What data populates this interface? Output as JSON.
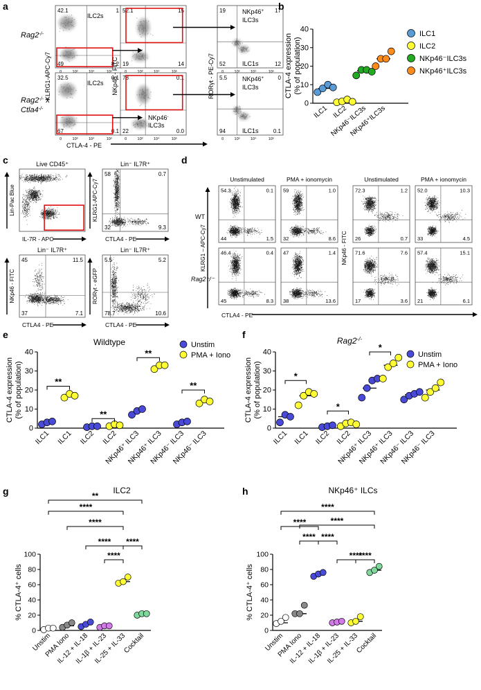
{
  "panel_a": {
    "letter": "a",
    "rows": [
      {
        "label_main": "Rag2",
        "label_sup": "-/-",
        "label_line2": ""
      },
      {
        "label_main": "Rag2",
        "label_sup": "-/-",
        "label_line2": "Ctla4",
        "label_line2_sup": "-/-",
        "label_x": " x"
      }
    ],
    "row1": {
      "plot1": {
        "q_tl": "42.1",
        "gate_label": "ILC2s",
        "q_tr": "1",
        "q_bl": "49",
        "q_br": "8.2"
      },
      "plot2": {
        "q_tl": "52.1",
        "q_tr": "15",
        "q_bl": "19",
        "q_br": "14"
      },
      "plot3": {
        "q_tl": "19",
        "q_tr": "17",
        "gate_label_1": "NKp46",
        "gate_label_2": "ILC3s",
        "q_bl": "52",
        "q_br": "12",
        "gate_label_bottom": "ILC1s"
      }
    },
    "row2": {
      "plot1": {
        "q_tl": "32.5",
        "gate_label": "ILC2s",
        "q_tr": "0.1",
        "q_bl": "67",
        "q_br": "0.1"
      },
      "plot2": {
        "q_tl": "78",
        "q_tr": "0.1",
        "q_bl": "22",
        "q_br": "0.0",
        "gate_label_1": "NKp46",
        "gate_label_2": "ILC3s"
      },
      "plot3": {
        "q_tl": "5.5",
        "q_tr": "0",
        "gate_label_1": "NKp46",
        "gate_label_2": "ILC3s",
        "q_bl": "94",
        "q_br": "0.1",
        "gate_label_bottom": "ILC1s"
      }
    },
    "y_labels": [
      "KLRG1-APC-Cy7",
      "NKp46 - FITC",
      "RORγt - PE-Cy7"
    ],
    "x_label": "CTLA-4 - PE",
    "tick_labels": [
      "0",
      "10³",
      "10⁴",
      "10⁵"
    ]
  },
  "panel_b": {
    "letter": "b",
    "chart_data": {
      "type": "scatter",
      "categories": [
        "ILC1",
        "ILC2",
        "NKp46⁻ILC3s",
        "NKp46⁺ILC3s"
      ],
      "ylabel_1": "CTLA-4 expression",
      "ylabel_2": "(% of population)",
      "ylim": [
        0,
        40
      ],
      "yticks": [
        0,
        10,
        20,
        30,
        40
      ],
      "series": [
        {
          "name": "ILC1",
          "color": "#5b9bd5",
          "values": [
            6,
            8,
            10,
            8.5
          ],
          "mean": 8
        },
        {
          "name": "ILC2",
          "color": "#ffff33",
          "values": [
            0.5,
            1,
            2,
            0.8
          ],
          "mean": 1
        },
        {
          "name": "NKp46⁻ILC3s",
          "color": "#22aa22",
          "values": [
            15,
            18,
            18,
            17
          ],
          "mean": 17.5
        },
        {
          "name": "NKp46⁺ILC3s",
          "color": "#ff8c1a",
          "values": [
            20,
            24,
            24,
            28
          ],
          "mean": 24
        }
      ]
    }
  },
  "panel_c": {
    "letter": "c",
    "plots": [
      {
        "title": "Live CD45⁺",
        "ylabel": "Lin-Pac Blue",
        "xlabel": "IL-7R - APC"
      },
      {
        "title": "Lin⁻ IL7R⁺",
        "ylabel": "KLRG1-APC-Cy7",
        "xlabel": "CTLA4 - PE",
        "q_tl": "58",
        "q_tr": "0.7",
        "q_bl": "32",
        "q_br": "9.3"
      },
      {
        "title": "Lin⁻ IL7R⁺",
        "ylabel": "NKp46 - FITC",
        "xlabel": "CTLA4 - PE",
        "q_tl": "45",
        "q_tr": "11.5",
        "q_bl": "37",
        "q_br": "7.1"
      },
      {
        "title": "Lin⁻ IL7R⁺",
        "ylabel": "RORγt - eGFP",
        "xlabel": "CTLA4 - PE",
        "q_tl": "5.5",
        "q_tr": "5.2",
        "q_bl": "78.7",
        "q_br": "10.6"
      }
    ]
  },
  "panel_d": {
    "letter": "d",
    "col_titles": [
      "Unstimulated",
      "PMA + ionomycin",
      "Unstimulated",
      "PMA + ionomycin"
    ],
    "row_labels": [
      "WT",
      "Rag2⁻/⁻"
    ],
    "ylabel_left": "KLRG1 – APC-Cy7",
    "ylabel_right": "NKp46 - FITC",
    "xlabel": "CTLA4 - PE",
    "plots": [
      {
        "q_tl": "54.3",
        "q_tr": "0.1",
        "q_bl": "44",
        "q_br": "1.5"
      },
      {
        "q_tl": "59",
        "q_tr": "1.0",
        "q_bl": "32",
        "q_br": "8.6"
      },
      {
        "q_tl": "72.3",
        "q_tr": "1.2",
        "q_bl": "26",
        "q_br": "0.7"
      },
      {
        "q_tl": "52.0",
        "q_tr": "10.3",
        "q_bl": "33",
        "q_br": "4.5"
      },
      {
        "q_tl": "46.4",
        "q_tr": "0.4",
        "q_bl": "45",
        "q_br": "8.3"
      },
      {
        "q_tl": "47",
        "q_tr": "1.4",
        "q_bl": "38",
        "q_br": "13.6"
      },
      {
        "q_tl": "71.6",
        "q_tr": "7.6",
        "q_bl": "17",
        "q_br": "3.6"
      },
      {
        "q_tl": "57.4",
        "q_tr": "15.1",
        "q_bl": "21",
        "q_br": "6.1"
      }
    ]
  },
  "panel_e": {
    "letter": "e",
    "chart_data": {
      "type": "scatter",
      "title": "Wildtype",
      "ylabel_1": "CTLA-4 expression",
      "ylabel_2": "(% of population)",
      "ylim": [
        0,
        40
      ],
      "yticks": [
        0,
        10,
        20,
        30,
        40
      ],
      "categories": [
        "ILC1",
        "ILC1",
        "ILC2",
        "ILC2",
        "NKp46⁺ ILC3",
        "NKp46⁺ ILC3",
        "NKp46⁻ ILC3",
        "NKp46⁻ ILC3"
      ],
      "legend": [
        {
          "name": "Unstim",
          "color": "#4a4ad8"
        },
        {
          "name": "PMA + Iono",
          "color": "#ffff33"
        }
      ],
      "groups": [
        {
          "color": "#4a4ad8",
          "values": [
            2,
            3,
            3.5
          ],
          "mean": 3
        },
        {
          "color": "#ffff33",
          "values": [
            16,
            18,
            17
          ],
          "mean": 17
        },
        {
          "color": "#4a4ad8",
          "values": [
            0.5,
            1,
            1
          ],
          "mean": 1
        },
        {
          "color": "#ffff33",
          "values": [
            1,
            2,
            1.5
          ],
          "mean": 1.5
        },
        {
          "color": "#4a4ad8",
          "values": [
            7,
            9,
            10
          ],
          "mean": 8.5
        },
        {
          "color": "#ffff33",
          "values": [
            31,
            33,
            33
          ],
          "mean": 32.5
        },
        {
          "color": "#4a4ad8",
          "values": [
            2,
            3,
            3.5
          ],
          "mean": 3
        },
        {
          "color": "#ffff33",
          "values": [
            13,
            15,
            14
          ],
          "mean": 14
        }
      ],
      "sig": [
        {
          "pair": [
            0,
            1
          ],
          "label": "**"
        },
        {
          "pair": [
            2,
            3
          ],
          "label": "**"
        },
        {
          "pair": [
            4,
            5
          ],
          "label": "**"
        },
        {
          "pair": [
            6,
            7
          ],
          "label": "**"
        }
      ]
    }
  },
  "panel_f": {
    "letter": "f",
    "chart_data": {
      "type": "scatter",
      "title_main": "Rag2",
      "title_sup": "-/-",
      "ylabel_1": "CTLA-4 expression",
      "ylabel_2": "(% of population)",
      "ylim": [
        0,
        40
      ],
      "yticks": [
        0,
        10,
        20,
        30,
        40
      ],
      "categories": [
        "ILC1",
        "ILC1",
        "ILC2",
        "ILC2",
        "NKp46⁺ ILC3",
        "NKp46⁺ ILC3",
        "NKp46⁻ ILC3",
        "NKp46⁻ ILC3"
      ],
      "legend": [
        {
          "name": "Unstim",
          "color": "#4a4ad8"
        },
        {
          "name": "PMA + Iono",
          "color": "#ffff33"
        }
      ],
      "groups": [
        {
          "color": "#4a4ad8",
          "values": [
            3,
            7,
            6
          ],
          "mean": 6
        },
        {
          "color": "#ffff33",
          "values": [
            12,
            17,
            19,
            18
          ],
          "mean": 17
        },
        {
          "color": "#4a4ad8",
          "values": [
            0.5,
            1,
            1.5
          ],
          "mean": 1
        },
        {
          "color": "#ffff33",
          "values": [
            1,
            2.5,
            3,
            2
          ],
          "mean": 2
        },
        {
          "color": "#4a4ad8",
          "values": [
            16,
            21,
            25,
            26
          ],
          "mean": 21
        },
        {
          "color": "#ffff33",
          "values": [
            26,
            32,
            34,
            37
          ],
          "mean": 33
        },
        {
          "color": "#4a4ad8",
          "values": [
            15,
            17,
            18,
            19
          ],
          "mean": 17.5
        },
        {
          "color": "#ffff33",
          "values": [
            16,
            19,
            21,
            24
          ],
          "mean": 20
        }
      ],
      "sig": [
        {
          "pair": [
            0,
            1
          ],
          "label": "*"
        },
        {
          "pair": [
            2,
            3
          ],
          "label": "*"
        },
        {
          "pair": [
            4,
            5
          ],
          "label": "*"
        }
      ]
    }
  },
  "panel_g": {
    "letter": "g",
    "chart_data": {
      "type": "scatter",
      "title": "ILC2",
      "ylabel": "% CTLA-4⁺ cells",
      "ylim": [
        0,
        100
      ],
      "yticks": [
        0,
        20,
        40,
        60,
        80,
        100
      ],
      "categories": [
        "Unstim",
        "PMA Iono",
        "IL-12 + IL-18",
        "IL-1β + IL-23",
        "IL-25 + IL-33",
        "Cocktail"
      ],
      "groups": [
        {
          "color": "#ffffff",
          "values": [
            1,
            3,
            3
          ],
          "mean": 3
        },
        {
          "color": "#888888",
          "values": [
            4,
            7,
            10
          ],
          "mean": 6
        },
        {
          "color": "#4a4ad8",
          "values": [
            5,
            8,
            11
          ],
          "mean": 8
        },
        {
          "color": "#d27ae8",
          "values": [
            4,
            6,
            6
          ],
          "mean": 6
        },
        {
          "color": "#ffff33",
          "values": [
            62,
            64,
            70
          ],
          "mean": 64
        },
        {
          "color": "#7ed99a",
          "values": [
            20,
            22,
            22
          ],
          "mean": 21
        }
      ],
      "sig": [
        {
          "pair": [
            0,
            5
          ],
          "label": "**"
        },
        {
          "pair": [
            0,
            4
          ],
          "label": "****"
        },
        {
          "pair": [
            1,
            4
          ],
          "label": "****"
        },
        {
          "pair": [
            2,
            4
          ],
          "label": "****"
        },
        {
          "pair": [
            4,
            5
          ],
          "label": "****"
        },
        {
          "pair": [
            3,
            4
          ],
          "label": "****"
        }
      ]
    }
  },
  "panel_h": {
    "letter": "h",
    "chart_data": {
      "type": "scatter",
      "title": "NKp46⁺ ILCs",
      "ylabel": "% CTLA-4⁺ cells",
      "ylim": [
        0,
        100
      ],
      "yticks": [
        0,
        20,
        40,
        60,
        80,
        100
      ],
      "categories": [
        "Unstim",
        "PMA Iono",
        "IL-12 + IL-18",
        "IL-1β + IL-23",
        "IL-25 + IL-33",
        "Cocktail"
      ],
      "groups": [
        {
          "color": "#ffffff",
          "values": [
            9,
            12,
            17
          ],
          "mean": 10
        },
        {
          "color": "#888888",
          "values": [
            22,
            22,
            33
          ],
          "mean": 22
        },
        {
          "color": "#4a4ad8",
          "values": [
            71,
            74,
            76
          ],
          "mean": 74
        },
        {
          "color": "#d27ae8",
          "values": [
            10,
            11,
            12
          ],
          "mean": 11
        },
        {
          "color": "#ffff33",
          "values": [
            10,
            12,
            18
          ],
          "mean": 12
        },
        {
          "color": "#7ed99a",
          "values": [
            76,
            79,
            84
          ],
          "mean": 79
        }
      ],
      "sig": [
        {
          "pair": [
            0,
            5
          ],
          "label": "****"
        },
        {
          "pair": [
            0,
            2
          ],
          "label": "****"
        },
        {
          "pair": [
            1,
            5
          ],
          "label": "****"
        },
        {
          "pair": [
            1,
            2
          ],
          "label": "****"
        },
        {
          "pair": [
            2,
            3
          ],
          "label": "****"
        },
        {
          "pair": [
            3,
            5
          ],
          "label": "****"
        },
        {
          "pair": [
            4,
            5
          ],
          "label": "****"
        }
      ]
    }
  }
}
